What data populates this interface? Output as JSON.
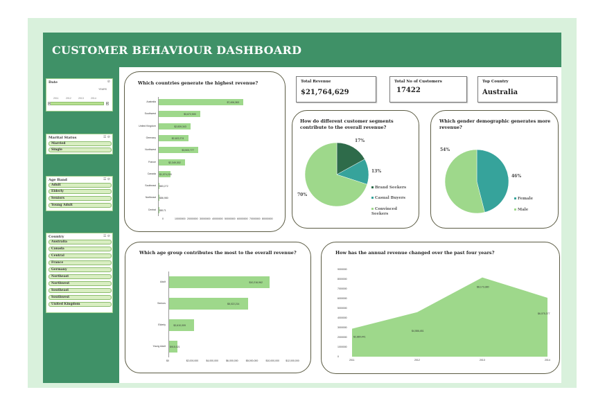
{
  "title": "CUSTOMER BEHAVIOUR DASHBOARD",
  "colors": {
    "header": "#3f9167",
    "light_bg": "#d9f1dc",
    "bar": "#9ed88b",
    "teal": "#36a39b",
    "dark_green": "#2e6b4a",
    "pie_light": "#9ed88b"
  },
  "slicers": {
    "date": {
      "title": "Date",
      "label_right": "YEARS",
      "years": [
        "2011",
        "2012",
        "2013",
        "2014"
      ]
    },
    "marital": {
      "title": "Marital Status",
      "items": [
        "Married",
        "Single"
      ]
    },
    "age_band": {
      "title": "Age Band",
      "items": [
        "Adult",
        "Elderly",
        "Seniors",
        "Young Adult"
      ]
    },
    "country": {
      "title": "Country",
      "items": [
        "Australia",
        "Canada",
        "Central",
        "France",
        "Germany",
        "Northeast",
        "Northwest",
        "Southeast",
        "Southwest",
        "United Kingdom"
      ]
    }
  },
  "kpis": {
    "total_revenue": {
      "label": "Total Revenue",
      "value": "$21,764,629"
    },
    "total_customers": {
      "label": "Total No of Customers",
      "value": "17422"
    },
    "top_country": {
      "label": "Top Country",
      "value": "Australia"
    }
  },
  "chart_data": [
    {
      "id": "countries",
      "type": "bar",
      "title": "Which countries generate the highest revenue?",
      "categories": [
        "Australia",
        "Southwest",
        "United Kingdom",
        "Germany",
        "Northwest",
        "France",
        "Canada",
        "Southeast",
        "Northeast",
        "Central"
      ],
      "values": [
        7406363,
        3672500,
        2839343,
        2622274,
        3503777,
        2349302,
        1074218,
        83272,
        86980,
        8171
      ],
      "labels": [
        "$7,406,363",
        "$3,672,500",
        "$2,839,343",
        "$2,622,274",
        "$3,503,777",
        "$2,349,302",
        "$1,074,218",
        "$83,272",
        "$86,980",
        "$8171"
      ],
      "xticks": [
        "0",
        "10000000",
        "20000000",
        "30000000",
        "40000000",
        "50000000",
        "60000000",
        "70000000",
        "80000000"
      ],
      "xlim": [
        0,
        9000000
      ]
    },
    {
      "id": "segments",
      "type": "pie",
      "title": "How do different customer segments contribute to the overall revenue?",
      "slices": [
        {
          "name": "Brand Seekers",
          "value": 17,
          "label": "17%",
          "color": "#2e6b4a"
        },
        {
          "name": "Casual Buyers",
          "value": 13,
          "label": "13%",
          "color": "#36a39b"
        },
        {
          "name": "Convinced Seekers",
          "value": 70,
          "label": "70%",
          "color": "#9ed88b"
        }
      ]
    },
    {
      "id": "gender",
      "type": "pie",
      "title": "Which gender demographic generates more revenue?",
      "slices": [
        {
          "name": "Female",
          "value": 46,
          "label": "46%",
          "color": "#36a39b"
        },
        {
          "name": "Male",
          "value": 54,
          "label": "54%",
          "color": "#9ed88b"
        }
      ]
    },
    {
      "id": "age",
      "type": "bar",
      "title": "Which age group contributes the most to the overall revenue?",
      "categories": [
        "Adult",
        "Seniors",
        "Elderly",
        "Young Adult"
      ],
      "values": [
        10216962,
        8022214,
        2610009,
        915021
      ],
      "labels": [
        "$10,216,962",
        "$8,022,214",
        "$2,610,009",
        "$915,021"
      ],
      "xticks": [
        "$0",
        "$2,000,000",
        "$4,000,000",
        "$6,000,000",
        "$8,000,000",
        "$10,000,000",
        "$12,000,000"
      ],
      "xlim": [
        0,
        12000000
      ]
    },
    {
      "id": "annual",
      "type": "area",
      "title": "How has the annual revenue changed over the past four years?",
      "x": [
        "2011",
        "2012",
        "2013",
        "2014"
      ],
      "values": [
        2880441,
        4586481,
        8173380,
        6075377
      ],
      "labels": [
        "$2,880,441",
        "$4,586,481",
        "$8,173,380",
        "$6,075,377"
      ],
      "yticks": [
        "0",
        "1000000",
        "2000000",
        "3000000",
        "4000000",
        "5000000",
        "6000000",
        "7000000",
        "8000000",
        "9000000"
      ],
      "ylim": [
        0,
        9000000
      ]
    }
  ]
}
